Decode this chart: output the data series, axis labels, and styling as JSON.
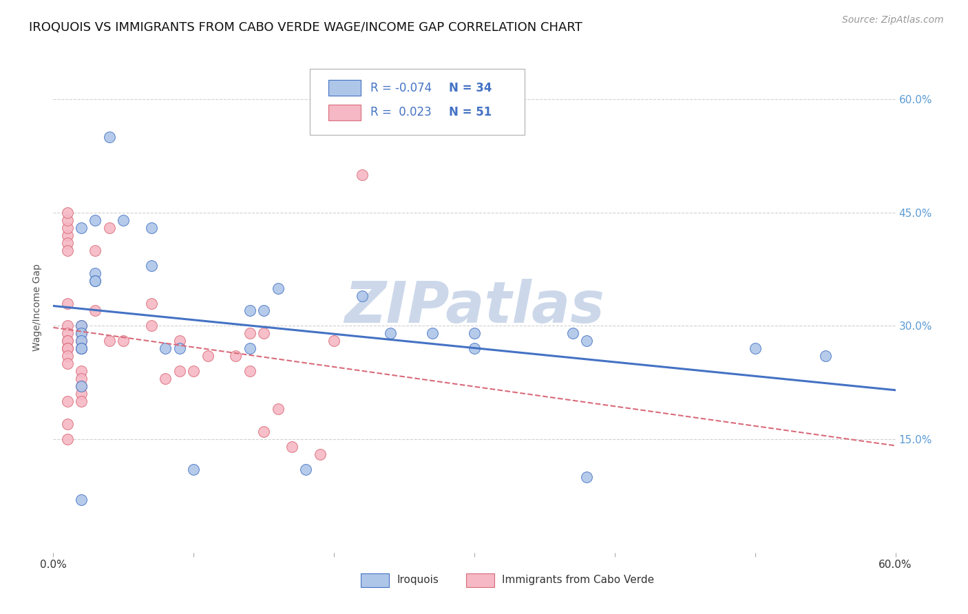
{
  "title": "IROQUOIS VS IMMIGRANTS FROM CABO VERDE WAGE/INCOME GAP CORRELATION CHART",
  "source": "Source: ZipAtlas.com",
  "ylabel": "Wage/Income Gap",
  "xlim": [
    0.0,
    0.6
  ],
  "ylim": [
    0.0,
    0.65
  ],
  "yticks": [
    0.0,
    0.15,
    0.3,
    0.45,
    0.6
  ],
  "ytick_labels": [
    "",
    "15.0%",
    "30.0%",
    "45.0%",
    "60.0%"
  ],
  "watermark": "ZIPatlas",
  "blue_scatter_x": [
    0.04,
    0.02,
    0.03,
    0.05,
    0.07,
    0.07,
    0.03,
    0.03,
    0.03,
    0.02,
    0.02,
    0.02,
    0.02,
    0.02,
    0.08,
    0.09,
    0.14,
    0.15,
    0.22,
    0.24,
    0.27,
    0.3,
    0.3,
    0.55,
    0.5,
    0.37,
    0.16,
    0.14,
    0.1,
    0.18,
    0.38,
    0.38,
    0.02,
    0.02
  ],
  "blue_scatter_y": [
    0.55,
    0.43,
    0.44,
    0.44,
    0.43,
    0.38,
    0.37,
    0.36,
    0.36,
    0.3,
    0.29,
    0.28,
    0.27,
    0.27,
    0.27,
    0.27,
    0.32,
    0.32,
    0.34,
    0.29,
    0.29,
    0.29,
    0.27,
    0.26,
    0.27,
    0.29,
    0.35,
    0.27,
    0.11,
    0.11,
    0.1,
    0.28,
    0.07,
    0.22
  ],
  "pink_scatter_x": [
    0.01,
    0.01,
    0.01,
    0.01,
    0.01,
    0.01,
    0.01,
    0.01,
    0.01,
    0.01,
    0.01,
    0.01,
    0.01,
    0.01,
    0.01,
    0.01,
    0.02,
    0.02,
    0.02,
    0.02,
    0.02,
    0.02,
    0.02,
    0.02,
    0.02,
    0.02,
    0.03,
    0.03,
    0.04,
    0.04,
    0.05,
    0.07,
    0.07,
    0.08,
    0.09,
    0.09,
    0.1,
    0.11,
    0.13,
    0.14,
    0.14,
    0.15,
    0.15,
    0.16,
    0.17,
    0.19,
    0.2,
    0.22,
    0.01,
    0.01,
    0.01
  ],
  "pink_scatter_y": [
    0.42,
    0.43,
    0.44,
    0.45,
    0.41,
    0.4,
    0.33,
    0.3,
    0.29,
    0.28,
    0.28,
    0.27,
    0.27,
    0.27,
    0.26,
    0.25,
    0.3,
    0.29,
    0.28,
    0.27,
    0.27,
    0.24,
    0.23,
    0.22,
    0.21,
    0.2,
    0.32,
    0.4,
    0.43,
    0.28,
    0.28,
    0.33,
    0.3,
    0.23,
    0.28,
    0.24,
    0.24,
    0.26,
    0.26,
    0.24,
    0.29,
    0.29,
    0.16,
    0.19,
    0.14,
    0.13,
    0.28,
    0.5,
    0.17,
    0.2,
    0.15
  ],
  "blue_color": "#aec6e8",
  "pink_color": "#f5b8c4",
  "blue_line_color": "#4472c4",
  "pink_line_color": "#d96b7a",
  "right_tick_color": "#5b9bd5",
  "grid_color": "#d0d0d0",
  "background_color": "#ffffff",
  "title_fontsize": 13,
  "source_fontsize": 10,
  "axis_label_fontsize": 10,
  "tick_fontsize": 11,
  "legend_fontsize": 12,
  "watermark_color": "#ccd8ea",
  "watermark_fontsize": 60
}
